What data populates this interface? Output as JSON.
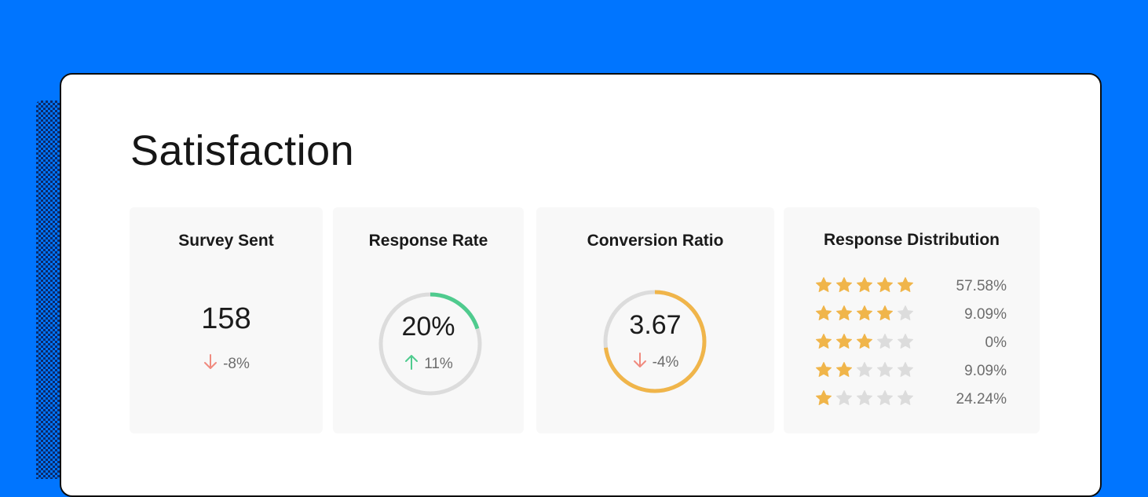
{
  "page": {
    "title": "Satisfaction"
  },
  "colors": {
    "background": "#0075ff",
    "green": "#4fcb8e",
    "orange": "#f0b54a",
    "red_down": "#f08a7e",
    "ring_track": "#dcdcdc",
    "star_empty": "#dcdcdc"
  },
  "survey_sent": {
    "title": "Survey Sent",
    "value": "158",
    "delta": "-8%",
    "trend": "down"
  },
  "response_rate": {
    "title": "Response Rate",
    "value": "20%",
    "delta": "11%",
    "trend": "up",
    "ring_fraction": 0.2
  },
  "conversion_ratio": {
    "title": "Conversion Ratio",
    "value": "3.67",
    "delta": "-4%",
    "trend": "down",
    "ring_fraction": 0.73
  },
  "response_distribution": {
    "title": "Response Distribution",
    "rows": [
      {
        "stars": 5,
        "percent": "57.58%"
      },
      {
        "stars": 4,
        "percent": "9.09%"
      },
      {
        "stars": 3,
        "percent": "0%"
      },
      {
        "stars": 2,
        "percent": "9.09%"
      },
      {
        "stars": 1,
        "percent": "24.24%"
      }
    ]
  }
}
